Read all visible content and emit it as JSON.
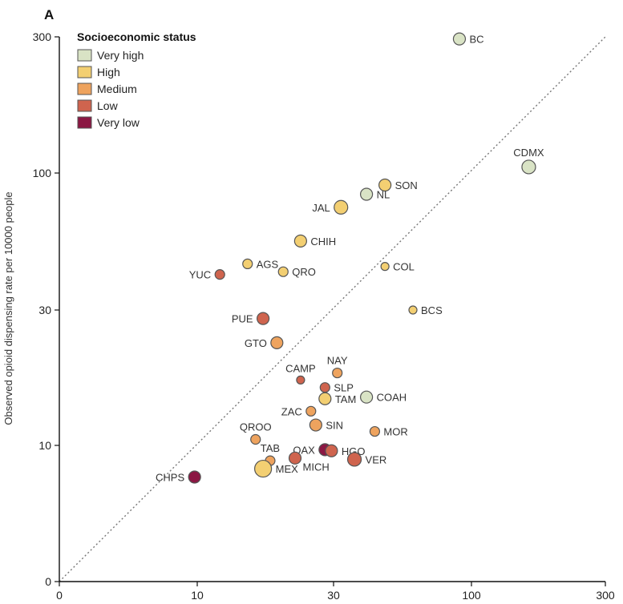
{
  "chart_data": {
    "type": "scatter",
    "panel_label": "A",
    "xlabel": "",
    "ylabel": "Observed opioid dispensing rate per 10000 people",
    "x_scale": "symlog",
    "y_scale": "symlog",
    "xlim": [
      0,
      300
    ],
    "ylim": [
      0,
      300
    ],
    "x_ticks": [
      {
        "value": 0,
        "label": "0"
      },
      {
        "value": 10,
        "label": "10"
      },
      {
        "value": 30,
        "label": "30"
      },
      {
        "value": 100,
        "label": "100"
      },
      {
        "value": 300,
        "label": "300"
      }
    ],
    "y_ticks": [
      {
        "value": 0,
        "label": "0"
      },
      {
        "value": 10,
        "label": "10"
      },
      {
        "value": 30,
        "label": "30"
      },
      {
        "value": 100,
        "label": "100"
      },
      {
        "value": 300,
        "label": "300"
      }
    ],
    "reference_line": "y = x (dotted)",
    "legend": {
      "title": "Socioeconomic status",
      "placement": "top-left",
      "items": [
        {
          "label": "Very high",
          "color": "#d9e3c5"
        },
        {
          "label": "High",
          "color": "#f3cf72"
        },
        {
          "label": "Medium",
          "color": "#eea35e"
        },
        {
          "label": "Low",
          "color": "#cf644e"
        },
        {
          "label": "Very low",
          "color": "#8b1743"
        }
      ]
    },
    "points": [
      {
        "label": "BC",
        "x": 90,
        "y": 295,
        "status": "Very high",
        "size": "m",
        "label_pos": "right"
      },
      {
        "label": "CDMX",
        "x": 160,
        "y": 105,
        "status": "Very high",
        "size": "l",
        "label_pos": "above"
      },
      {
        "label": "SON",
        "x": 47,
        "y": 90,
        "status": "High",
        "size": "m",
        "label_pos": "right"
      },
      {
        "label": "NL",
        "x": 40,
        "y": 83,
        "status": "Very high",
        "size": "m",
        "label_pos": "right"
      },
      {
        "label": "JAL",
        "x": 32,
        "y": 74,
        "status": "High",
        "size": "l",
        "label_pos": "left"
      },
      {
        "label": "CHIH",
        "x": 23,
        "y": 55,
        "status": "High",
        "size": "m",
        "label_pos": "right"
      },
      {
        "label": "AGS",
        "x": 15,
        "y": 45,
        "status": "High",
        "size": "s",
        "label_pos": "right"
      },
      {
        "label": "QRO",
        "x": 20,
        "y": 42,
        "status": "High",
        "size": "s",
        "label_pos": "right"
      },
      {
        "label": "YUC",
        "x": 12,
        "y": 41,
        "status": "Low",
        "size": "s",
        "label_pos": "left"
      },
      {
        "label": "COL",
        "x": 47,
        "y": 44,
        "status": "High",
        "size": "xs",
        "label_pos": "right"
      },
      {
        "label": "BCS",
        "x": 60,
        "y": 30,
        "status": "High",
        "size": "xs",
        "label_pos": "right"
      },
      {
        "label": "PUE",
        "x": 17,
        "y": 28,
        "status": "Low",
        "size": "m",
        "label_pos": "left"
      },
      {
        "label": "GTO",
        "x": 19,
        "y": 23,
        "status": "Medium",
        "size": "m",
        "label_pos": "left"
      },
      {
        "label": "NAY",
        "x": 31,
        "y": 18,
        "status": "Medium",
        "size": "s",
        "label_pos": "above"
      },
      {
        "label": "CAMP",
        "x": 23,
        "y": 17,
        "status": "Low",
        "size": "xs",
        "label_pos": "above"
      },
      {
        "label": "SLP",
        "x": 28,
        "y": 16,
        "status": "Low",
        "size": "s",
        "label_pos": "right"
      },
      {
        "label": "TAM",
        "x": 28,
        "y": 14.6,
        "status": "High",
        "size": "m",
        "label_pos": "right"
      },
      {
        "label": "COAH",
        "x": 40,
        "y": 14.8,
        "status": "Very high",
        "size": "m",
        "label_pos": "right"
      },
      {
        "label": "ZAC",
        "x": 25,
        "y": 13.2,
        "status": "Medium",
        "size": "s",
        "label_pos": "left"
      },
      {
        "label": "SIN",
        "x": 26,
        "y": 11.8,
        "status": "Medium",
        "size": "m",
        "label_pos": "right"
      },
      {
        "label": "MOR",
        "x": 43,
        "y": 11.2,
        "status": "Medium",
        "size": "s",
        "label_pos": "right"
      },
      {
        "label": "QROO",
        "x": 16,
        "y": 10.5,
        "status": "Medium",
        "size": "s",
        "label_pos": "above"
      },
      {
        "label": "OAX",
        "x": 28,
        "y": 9.2,
        "status": "Very low",
        "size": "m",
        "label_pos": "left"
      },
      {
        "label": "HGO",
        "x": 29.5,
        "y": 9.0,
        "status": "Low",
        "size": "m",
        "label_pos": "right"
      },
      {
        "label": "TAB",
        "x": 18,
        "y": 7.4,
        "status": "Medium",
        "size": "s",
        "label_pos": "above"
      },
      {
        "label": "MICH",
        "x": 22,
        "y": 7.8,
        "status": "Low",
        "size": "m",
        "label_pos": "below-right"
      },
      {
        "label": "VER",
        "x": 36,
        "y": 7.6,
        "status": "Low",
        "size": "l",
        "label_pos": "right"
      },
      {
        "label": "MEX",
        "x": 17,
        "y": 6.3,
        "status": "High",
        "size": "xl",
        "label_pos": "right"
      },
      {
        "label": "CHPS",
        "x": 9.5,
        "y": 5.3,
        "status": "Very low",
        "size": "m",
        "label_pos": "left"
      }
    ]
  }
}
